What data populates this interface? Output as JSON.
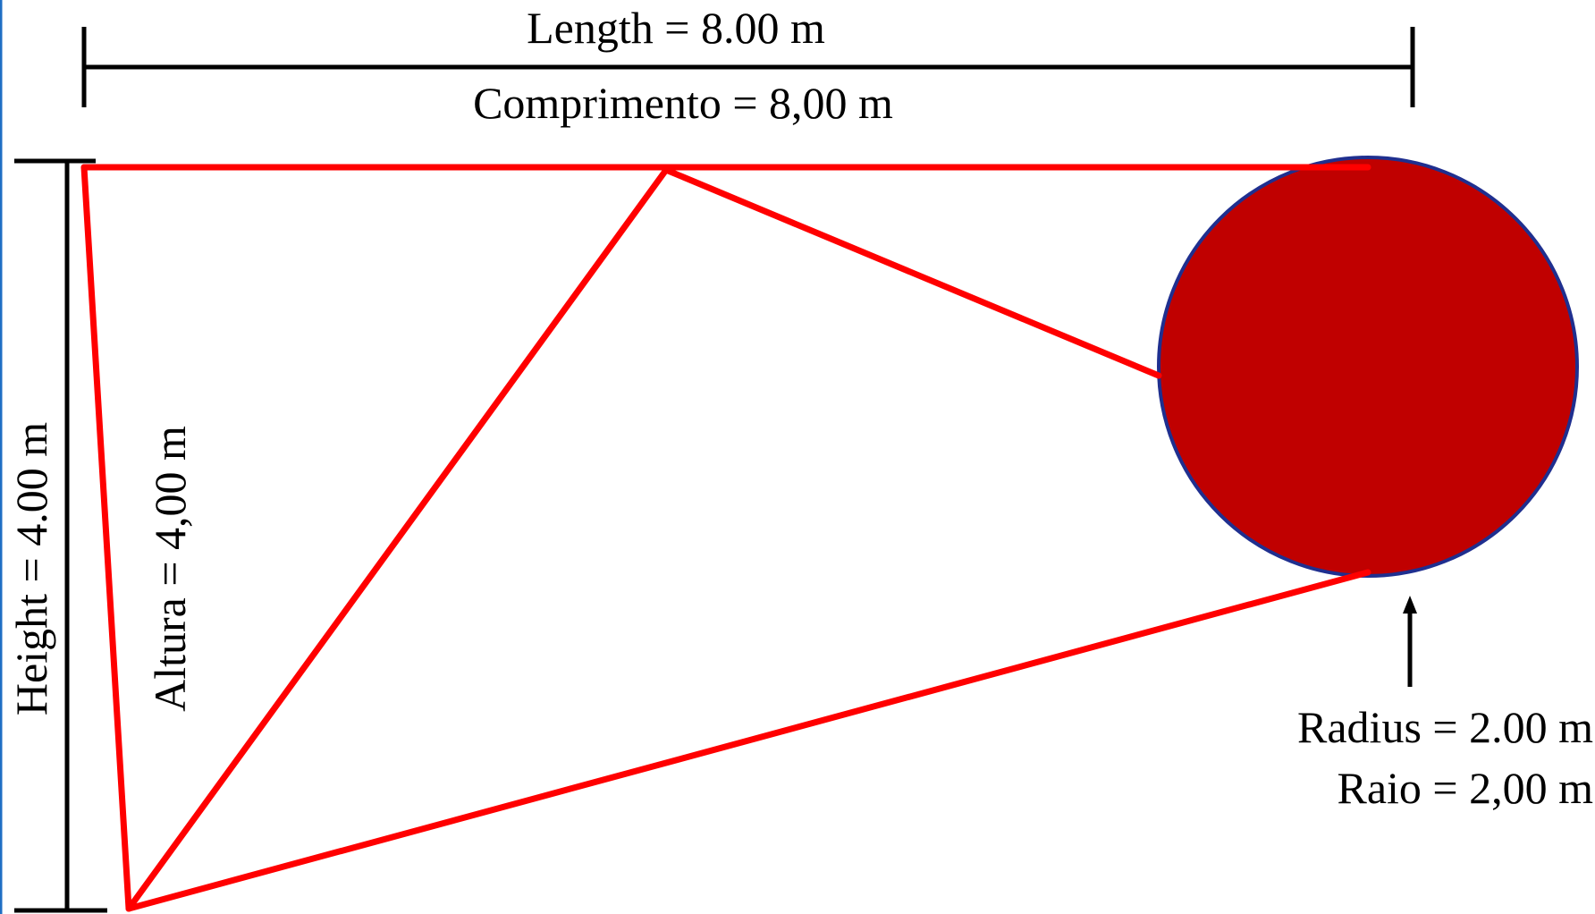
{
  "colors": {
    "frame": "#1f6fc4",
    "outline_red": "#ff0000",
    "disc_fill": "#c00000",
    "disc_stroke": "#1f2f8f",
    "dimension_black": "#000000"
  },
  "labels": {
    "length_en": "Length = 8.00 m",
    "length_pt": "Comprimento = 8,00 m",
    "height_en": "Height = 4.00 m",
    "height_pt": "Altura = 4,00 m",
    "radius_en": "Radius = 2.00 m",
    "radius_pt": "Raio = 2,00 m"
  }
}
